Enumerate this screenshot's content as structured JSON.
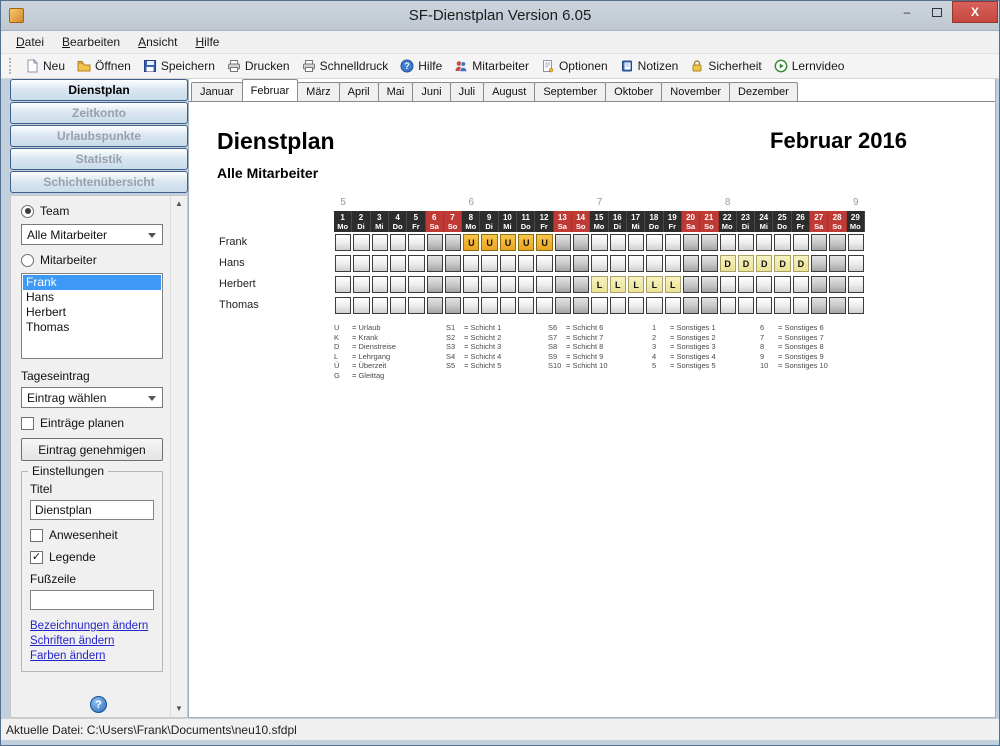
{
  "window": {
    "title": "SF-Dienstplan Version 6.05",
    "status_bar": "Aktuelle Datei: C:\\Users\\Frank\\Documents\\neu10.sfdpl"
  },
  "menu": {
    "items": [
      "Datei",
      "Bearbeiten",
      "Ansicht",
      "Hilfe"
    ]
  },
  "toolbar": {
    "items": [
      {
        "label": "Neu",
        "icon": "new-file-icon"
      },
      {
        "label": "Öffnen",
        "icon": "open-folder-icon"
      },
      {
        "label": "Speichern",
        "icon": "save-icon"
      },
      {
        "label": "Drucken",
        "icon": "print-icon"
      },
      {
        "label": "Schnelldruck",
        "icon": "print-icon"
      },
      {
        "label": "Hilfe",
        "icon": "help-icon"
      },
      {
        "label": "Mitarbeiter",
        "icon": "users-icon"
      },
      {
        "label": "Optionen",
        "icon": "options-icon"
      },
      {
        "label": "Notizen",
        "icon": "notes-icon"
      },
      {
        "label": "Sicherheit",
        "icon": "lock-icon"
      },
      {
        "label": "Lernvideo",
        "icon": "play-icon"
      }
    ]
  },
  "sidebar": {
    "nav": [
      {
        "label": "Dienstplan",
        "active": true
      },
      {
        "label": "Zeitkonto",
        "active": false
      },
      {
        "label": "Urlaubspunkte",
        "active": false
      },
      {
        "label": "Statistik",
        "active": false
      },
      {
        "label": "Schichtenübersicht",
        "active": false
      }
    ],
    "team_radio_label": "Team",
    "team_select_value": "Alle Mitarbeiter",
    "mitarbeiter_radio_label": "Mitarbeiter",
    "employees": [
      "Frank",
      "Hans",
      "Herbert",
      "Thomas"
    ],
    "selected_employee": "Frank",
    "tageseintrag_label": "Tageseintrag",
    "eintrag_select_value": "Eintrag wählen",
    "eintraege_planen_label": "Einträge planen",
    "eintrag_genehmigen_label": "Eintrag genehmigen",
    "einstellungen": {
      "title": "Einstellungen",
      "titel_label": "Titel",
      "titel_value": "Dienstplan",
      "anwesenheit_label": "Anwesenheit",
      "anwesenheit_checked": false,
      "legende_label": "Legende",
      "legende_checked": true,
      "fusszeile_label": "Fußzeile",
      "fusszeile_value": "",
      "links": [
        "Bezeichnungen ändern",
        "Schriften ändern",
        "Farben ändern"
      ]
    }
  },
  "tabs": {
    "months": [
      "Januar",
      "Februar",
      "März",
      "April",
      "Mai",
      "Juni",
      "Juli",
      "August",
      "September",
      "Oktober",
      "November",
      "Dezember"
    ],
    "active": "Februar"
  },
  "content": {
    "title": "Dienstplan",
    "subtitle": "Alle Mitarbeiter",
    "period": "Februar 2016"
  },
  "calendar": {
    "week_numbers": [
      {
        "label": "5",
        "col": 1
      },
      {
        "label": "6",
        "col": 8
      },
      {
        "label": "7",
        "col": 15
      },
      {
        "label": "8",
        "col": 22
      },
      {
        "label": "9",
        "col": 29
      }
    ],
    "days": [
      {
        "n": "1",
        "d": "Mo",
        "we": false
      },
      {
        "n": "2",
        "d": "Di",
        "we": false
      },
      {
        "n": "3",
        "d": "Mi",
        "we": false
      },
      {
        "n": "4",
        "d": "Do",
        "we": false
      },
      {
        "n": "5",
        "d": "Fr",
        "we": false
      },
      {
        "n": "6",
        "d": "Sa",
        "we": true
      },
      {
        "n": "7",
        "d": "So",
        "we": true
      },
      {
        "n": "8",
        "d": "Mo",
        "we": false
      },
      {
        "n": "9",
        "d": "Di",
        "we": false
      },
      {
        "n": "10",
        "d": "Mi",
        "we": false
      },
      {
        "n": "11",
        "d": "Do",
        "we": false
      },
      {
        "n": "12",
        "d": "Fr",
        "we": false
      },
      {
        "n": "13",
        "d": "Sa",
        "we": true
      },
      {
        "n": "14",
        "d": "So",
        "we": true
      },
      {
        "n": "15",
        "d": "Mo",
        "we": false
      },
      {
        "n": "16",
        "d": "Di",
        "we": false
      },
      {
        "n": "17",
        "d": "Mi",
        "we": false
      },
      {
        "n": "18",
        "d": "Do",
        "we": false
      },
      {
        "n": "19",
        "d": "Fr",
        "we": false
      },
      {
        "n": "20",
        "d": "Sa",
        "we": true
      },
      {
        "n": "21",
        "d": "So",
        "we": true
      },
      {
        "n": "22",
        "d": "Mo",
        "we": false
      },
      {
        "n": "23",
        "d": "Di",
        "we": false
      },
      {
        "n": "24",
        "d": "Mi",
        "we": false
      },
      {
        "n": "25",
        "d": "Do",
        "we": false
      },
      {
        "n": "26",
        "d": "Fr",
        "we": false
      },
      {
        "n": "27",
        "d": "Sa",
        "we": true
      },
      {
        "n": "28",
        "d": "So",
        "we": true
      },
      {
        "n": "29",
        "d": "Mo",
        "we": false
      }
    ],
    "rows": [
      {
        "name": "Frank",
        "entries": {
          "8": {
            "code": "U",
            "type": "o"
          },
          "9": {
            "code": "U",
            "type": "o"
          },
          "10": {
            "code": "U",
            "type": "o"
          },
          "11": {
            "code": "U",
            "type": "o"
          },
          "12": {
            "code": "U",
            "type": "o"
          }
        }
      },
      {
        "name": "Hans",
        "entries": {
          "22": {
            "code": "D",
            "type": "p"
          },
          "23": {
            "code": "D",
            "type": "p"
          },
          "24": {
            "code": "D",
            "type": "p"
          },
          "25": {
            "code": "D",
            "type": "p"
          },
          "26": {
            "code": "D",
            "type": "p"
          }
        }
      },
      {
        "name": "Herbert",
        "entries": {
          "15": {
            "code": "L",
            "type": "p"
          },
          "16": {
            "code": "L",
            "type": "p"
          },
          "17": {
            "code": "L",
            "type": "p"
          },
          "18": {
            "code": "L",
            "type": "p"
          },
          "19": {
            "code": "L",
            "type": "p"
          }
        }
      },
      {
        "name": "Thomas",
        "entries": {}
      }
    ],
    "colors": {
      "header_bg": "#2d2d2d",
      "weekend_bg": "#bf3a35",
      "entry_orange": "#eda51f",
      "entry_pale": "#ebe295"
    }
  },
  "legend": {
    "columns": [
      [
        {
          "code": "U",
          "label": "Urlaub"
        },
        {
          "code": "K",
          "label": "Krank"
        },
        {
          "code": "D",
          "label": "Dienstreise"
        },
        {
          "code": "L",
          "label": "Lehrgang"
        },
        {
          "code": "Ü",
          "label": "Überzeit"
        },
        {
          "code": "G",
          "label": "Gleittag"
        }
      ],
      [
        {
          "code": "S1",
          "label": "Schicht 1"
        },
        {
          "code": "S2",
          "label": "Schicht 2"
        },
        {
          "code": "S3",
          "label": "Schicht 3"
        },
        {
          "code": "S4",
          "label": "Schicht 4"
        },
        {
          "code": "S5",
          "label": "Schicht 5"
        }
      ],
      [
        {
          "code": "S6",
          "label": "Schicht 6"
        },
        {
          "code": "S7",
          "label": "Schicht 7"
        },
        {
          "code": "S8",
          "label": "Schicht 8"
        },
        {
          "code": "S9",
          "label": "Schicht 9"
        },
        {
          "code": "S10",
          "label": "Schicht 10"
        }
      ],
      [
        {
          "code": "1",
          "label": "Sonstiges 1"
        },
        {
          "code": "2",
          "label": "Sonstiges 2"
        },
        {
          "code": "3",
          "label": "Sonstiges 3"
        },
        {
          "code": "4",
          "label": "Sonstiges 4"
        },
        {
          "code": "5",
          "label": "Sonstiges 5"
        }
      ],
      [
        {
          "code": "6",
          "label": "Sonstiges 6"
        },
        {
          "code": "7",
          "label": "Sonstiges 7"
        },
        {
          "code": "8",
          "label": "Sonstiges 8"
        },
        {
          "code": "9",
          "label": "Sonstiges 9"
        },
        {
          "code": "10",
          "label": "Sonstiges 10"
        }
      ]
    ]
  }
}
